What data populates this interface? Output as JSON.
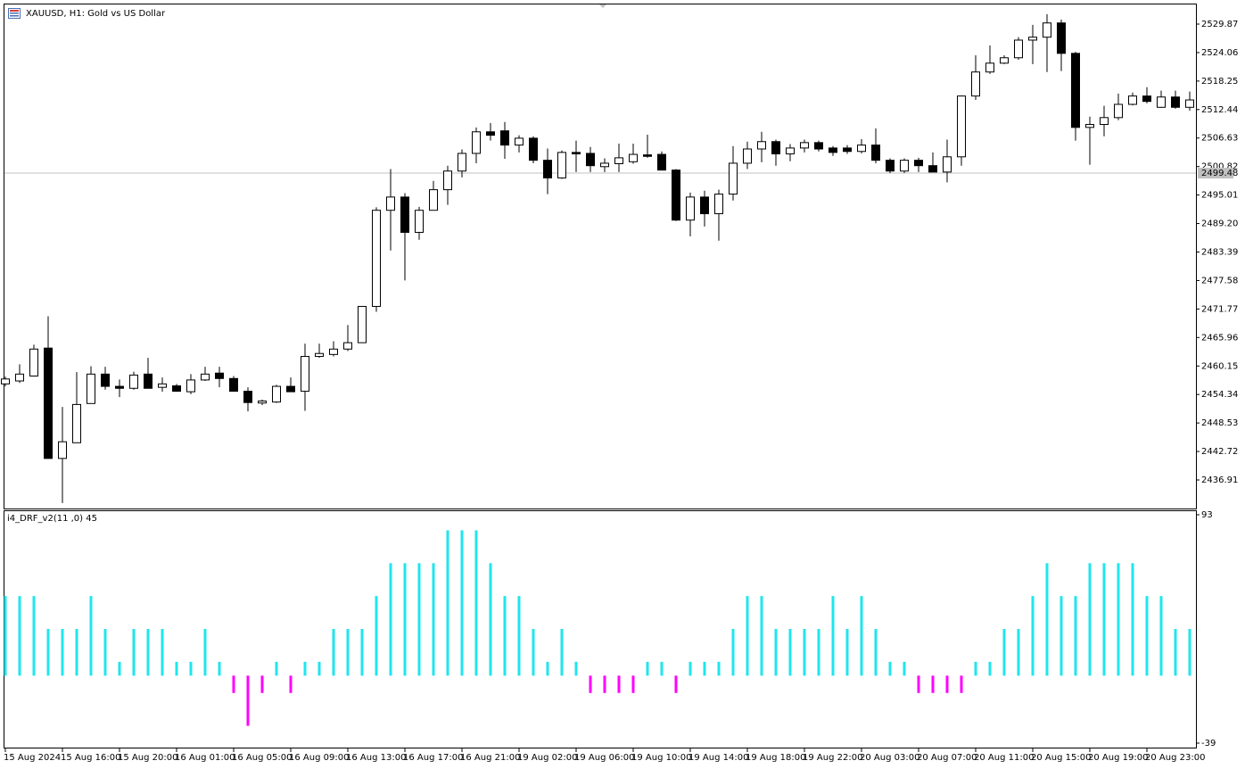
{
  "chart_data": [
    {
      "type": "candlestick",
      "title": "XAUUSD, H1:  Gold vs US Dollar",
      "categories": [
        "15 Aug 2024",
        null,
        null,
        null,
        "15 Aug 16:00",
        null,
        null,
        null,
        "15 Aug 20:00",
        null,
        null,
        null,
        "16 Aug 01:00",
        null,
        null,
        null,
        "16 Aug 05:00",
        null,
        null,
        null,
        "16 Aug 09:00",
        null,
        null,
        null,
        "16 Aug 13:00",
        null,
        null,
        null,
        "16 Aug 17:00",
        null,
        null,
        null,
        "16 Aug 21:00",
        null,
        null,
        null,
        "19 Aug 02:00",
        null,
        null,
        null,
        "19 Aug 06:00",
        null,
        null,
        null,
        "19 Aug 10:00",
        null,
        null,
        null,
        "19 Aug 14:00",
        null,
        null,
        null,
        "19 Aug 18:00",
        null,
        null,
        null,
        "19 Aug 22:00",
        null,
        null,
        null,
        "20 Aug 03:00",
        null,
        null,
        null,
        "20 Aug 07:00",
        null,
        null,
        null,
        "20 Aug 11:00",
        null,
        null,
        null,
        "20 Aug 15:00",
        null,
        null,
        null,
        "20 Aug 19:00",
        null,
        null,
        null,
        "20 Aug 23:00",
        null,
        null,
        null
      ],
      "open": [
        2456.5,
        2457.1,
        2458.1,
        2463.8,
        2441.3,
        2444.5,
        2452.5,
        2458.5,
        2456.0,
        2455.6,
        2458.5,
        2455.8,
        2456.1,
        2454.9,
        2457.3,
        2458.7,
        2457.6,
        2455.0,
        2452.6,
        2452.8,
        2456.0,
        2455.0,
        2462.1,
        2462.5,
        2463.6,
        2464.9,
        2472.3,
        2491.9,
        2494.6,
        2487.4,
        2491.9,
        2496.1,
        2499.9,
        2503.5,
        2507.9,
        2508.1,
        2505.2,
        2506.6,
        2502.1,
        2498.5,
        2503.7,
        2503.5,
        2500.8,
        2501.4,
        2501.8,
        2503.2,
        2503.3,
        2500.1,
        2489.9,
        2494.6,
        2491.2,
        2495.2,
        2501.5,
        2504.4,
        2505.9,
        2503.4,
        2504.6,
        2505.7,
        2504.6,
        2504.6,
        2503.9,
        2505.2,
        2502.1,
        2499.9,
        2502.1,
        2501.0,
        2499.7,
        2502.8,
        2515.2,
        2520.1,
        2521.9,
        2523.0,
        2526.6,
        2527.2,
        2530.1,
        2523.9,
        2508.8,
        2509.4,
        2510.8,
        2513.5,
        2515.2,
        2512.9,
        2515.0,
        2512.9
      ],
      "high": [
        2458.0,
        2460.5,
        2464.5,
        2470.3,
        2451.8,
        2458.9,
        2460.1,
        2460.0,
        2457.4,
        2459.0,
        2461.8,
        2457.8,
        2456.5,
        2458.5,
        2460.0,
        2460.0,
        2458.1,
        2455.8,
        2453.3,
        2456.3,
        2457.8,
        2464.7,
        2464.7,
        2465.2,
        2468.5,
        2472.3,
        2492.5,
        2500.3,
        2495.4,
        2492.6,
        2497.9,
        2501.0,
        2504.3,
        2508.8,
        2509.7,
        2509.9,
        2507.2,
        2507.0,
        2504.5,
        2504.1,
        2506.1,
        2504.8,
        2502.5,
        2505.5,
        2505.5,
        2507.3,
        2503.9,
        2500.3,
        2495.5,
        2495.9,
        2496.1,
        2505.0,
        2505.9,
        2507.9,
        2506.3,
        2505.4,
        2506.3,
        2506.1,
        2505.0,
        2505.2,
        2506.4,
        2508.6,
        2502.5,
        2502.5,
        2502.6,
        2503.7,
        2506.3,
        2515.3,
        2523.5,
        2525.5,
        2523.5,
        2527.2,
        2529.7,
        2531.9,
        2530.8,
        2524.2,
        2511.0,
        2513.2,
        2515.7,
        2515.9,
        2517.0,
        2516.3,
        2516.3,
        2516.1
      ],
      "low": [
        2456.0,
        2456.7,
        2458.0,
        2441.2,
        2432.2,
        2444.5,
        2452.5,
        2455.3,
        2453.8,
        2455.3,
        2455.6,
        2454.9,
        2454.9,
        2454.4,
        2457.1,
        2455.8,
        2454.9,
        2450.9,
        2452.2,
        2452.6,
        2454.9,
        2451.0,
        2461.8,
        2462.1,
        2463.2,
        2464.9,
        2471.2,
        2483.7,
        2477.6,
        2485.9,
        2491.9,
        2493.0,
        2498.6,
        2501.5,
        2506.1,
        2502.4,
        2503.7,
        2501.5,
        2495.2,
        2498.3,
        2499.7,
        2499.7,
        2499.7,
        2499.7,
        2501.4,
        2502.6,
        2500.1,
        2489.7,
        2486.6,
        2488.6,
        2485.7,
        2493.9,
        2500.3,
        2501.7,
        2501.0,
        2501.9,
        2503.7,
        2503.9,
        2503.0,
        2503.4,
        2503.5,
        2501.5,
        2499.5,
        2499.5,
        2499.7,
        2499.7,
        2497.6,
        2501.0,
        2514.4,
        2519.7,
        2521.7,
        2522.6,
        2521.7,
        2520.1,
        2520.3,
        2506.1,
        2501.2,
        2507.0,
        2510.3,
        2513.3,
        2513.7,
        2512.8,
        2512.6,
        2512.2
      ],
      "close": [
        2457.5,
        2458.5,
        2463.6,
        2441.3,
        2444.7,
        2452.3,
        2458.5,
        2456.0,
        2455.6,
        2458.3,
        2455.6,
        2456.5,
        2455.0,
        2457.3,
        2458.5,
        2457.6,
        2455.0,
        2452.7,
        2453.0,
        2456.0,
        2454.9,
        2462.1,
        2462.7,
        2463.6,
        2464.9,
        2472.3,
        2491.9,
        2494.6,
        2487.4,
        2491.9,
        2496.1,
        2499.9,
        2503.5,
        2507.9,
        2507.2,
        2505.2,
        2506.6,
        2502.1,
        2498.5,
        2503.7,
        2503.4,
        2501.0,
        2501.5,
        2502.6,
        2503.3,
        2502.9,
        2500.1,
        2489.9,
        2494.6,
        2491.2,
        2495.2,
        2501.5,
        2504.4,
        2505.9,
        2503.4,
        2504.6,
        2505.7,
        2504.4,
        2503.7,
        2503.9,
        2505.2,
        2502.1,
        2499.9,
        2502.1,
        2501.0,
        2499.7,
        2502.8,
        2515.2,
        2520.1,
        2521.9,
        2523.0,
        2526.6,
        2527.2,
        2530.1,
        2523.9,
        2508.8,
        2509.4,
        2510.8,
        2513.5,
        2515.2,
        2514.1,
        2515.0,
        2512.9,
        2514.4
      ],
      "up_color": "#ffffff",
      "down_color": "#000000",
      "price_line": 2499.48,
      "ylim": [
        2431.09,
        2533.87
      ],
      "yticks": [
        2436.91,
        2442.72,
        2448.53,
        2454.34,
        2460.15,
        2465.96,
        2471.77,
        2477.58,
        2483.39,
        {
          "value": 2489.2,
          "label": "2489.20"
        },
        2495.01,
        2500.82,
        2506.63,
        2512.44,
        2518.25,
        2524.06,
        2529.87
      ]
    },
    {
      "type": "bar",
      "title": "i4_DRF_v2(11 ,0) 45",
      "values": [
        46,
        46,
        46,
        27,
        27,
        27,
        46,
        27,
        8,
        27,
        27,
        27,
        8,
        8,
        27,
        8,
        -10,
        -29,
        -10,
        8,
        -10,
        8,
        8,
        27,
        27,
        27,
        46,
        65,
        65,
        65,
        65,
        84,
        84,
        84,
        65,
        46,
        46,
        27,
        8,
        27,
        8,
        -10,
        -10,
        -10,
        -10,
        8,
        8,
        -10,
        8,
        8,
        8,
        27,
        46,
        46,
        27,
        27,
        27,
        27,
        46,
        27,
        46,
        27,
        8,
        8,
        -10,
        -10,
        -10,
        -10,
        8,
        8,
        27,
        27,
        46,
        65,
        46,
        46,
        65,
        65,
        65,
        65,
        46,
        46,
        27,
        27
      ],
      "up_color": "#1ee6ee",
      "down_color": "#ff00ff",
      "ylim": [
        -39,
        93
      ],
      "yticks": [
        93,
        -39
      ]
    }
  ]
}
